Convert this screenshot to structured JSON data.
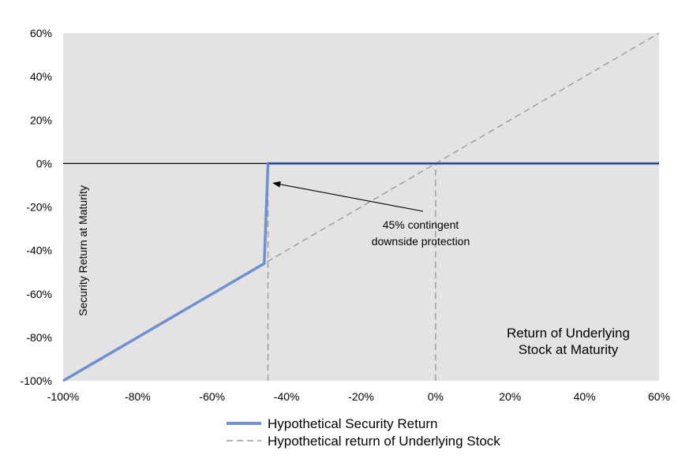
{
  "chart_data": {
    "type": "line",
    "xlabel": "Return of Underlying Stock at Maturity",
    "xlabel_lines": [
      "Return of Underlying",
      "Stock at Maturity"
    ],
    "ylabel": "Security Return at Maturity",
    "xlim": [
      -100,
      60
    ],
    "ylim": [
      -100,
      60
    ],
    "x_ticks": [
      "-100%",
      "-80%",
      "-60%",
      "-40%",
      "-20%",
      "0%",
      "20%",
      "40%",
      "60%"
    ],
    "y_ticks": [
      "60%",
      "40%",
      "20%",
      "0%",
      "-20%",
      "-40%",
      "-60%",
      "-80%",
      "-100%"
    ],
    "series": [
      {
        "name": "Hypothetical Security Return",
        "style": "solid",
        "color": "#6f8fd0",
        "x": [
          -100,
          -46,
          -45,
          60
        ],
        "y": [
          -100,
          -46,
          0,
          0
        ]
      },
      {
        "name": "Hypothetical return of Underlying Stock",
        "style": "dashed",
        "color": "#9a9a9a",
        "x": [
          -100,
          60
        ],
        "y": [
          -100,
          60
        ]
      }
    ],
    "reference_lines": [
      {
        "axis": "x",
        "value": -45,
        "from": -100,
        "to": 0
      },
      {
        "axis": "x",
        "value": 0,
        "from": -100,
        "to": 0
      }
    ],
    "annotation": {
      "lines": [
        "45% contingent",
        "downside protection"
      ],
      "arrow_target": {
        "x": -44,
        "y": -9
      }
    },
    "grid": false,
    "legend_position": "bottom",
    "colors": {
      "plot_background": "#e3e3e3",
      "security_line": "#6f8fd0",
      "zero_line": "#1a2a55",
      "dashed": "#9a9a9a"
    }
  }
}
